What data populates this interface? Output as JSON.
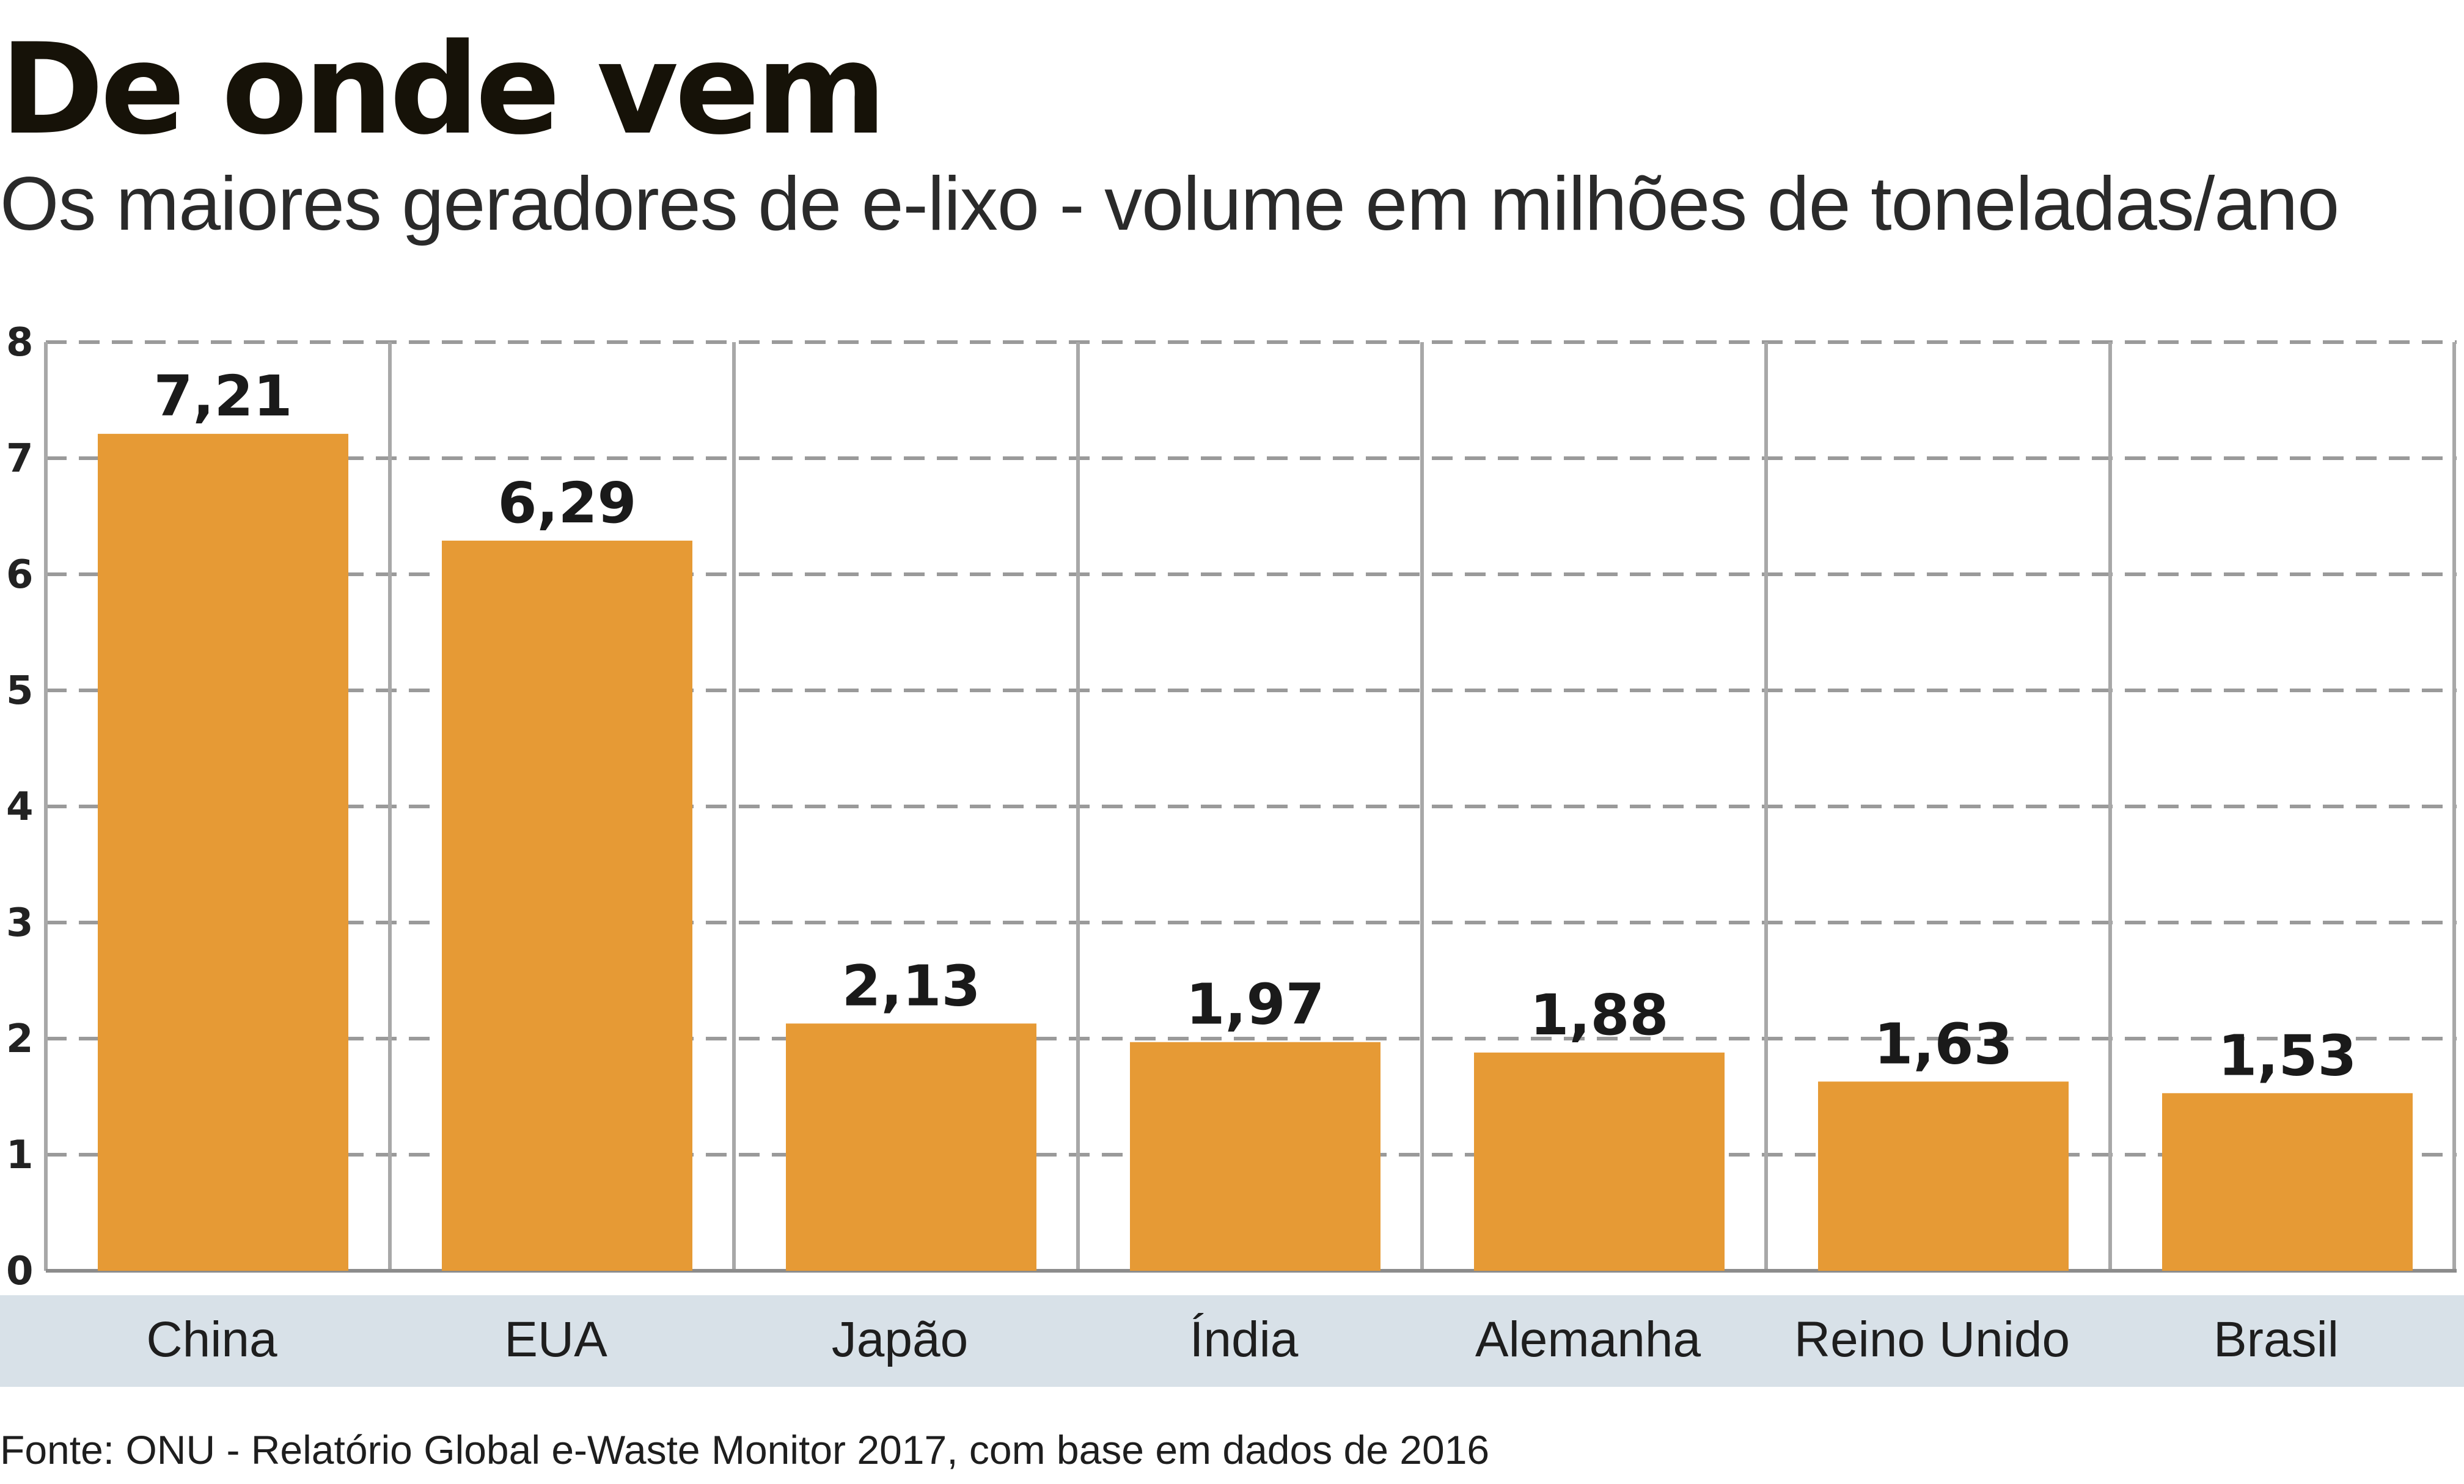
{
  "chart_data": {
    "type": "bar",
    "title": "De onde vem",
    "subtitle": "Os maiores geradores de e-lixo - volume em milhões de toneladas/ano",
    "categories": [
      "China",
      "EUA",
      "Japão",
      "Índia",
      "Alemanha",
      "Reino Unido",
      "Brasil"
    ],
    "values": [
      7.21,
      6.29,
      2.13,
      1.97,
      1.88,
      1.63,
      1.53
    ],
    "value_labels": [
      "7,21",
      "6,29",
      "2,13",
      "1,97",
      "1,88",
      "1,63",
      "1,53"
    ],
    "yticks": [
      "0",
      "1",
      "2",
      "3",
      "4",
      "5",
      "6",
      "7",
      "8"
    ],
    "ylim": [
      0,
      8
    ],
    "xlabel": "",
    "ylabel": "",
    "grid": true,
    "bar_color": "#E69A35",
    "category_band_color": "#D8E1E8",
    "source": "Fonte: ONU - Relatório Global e-Waste Monitor 2017, com base em dados de 2016"
  }
}
